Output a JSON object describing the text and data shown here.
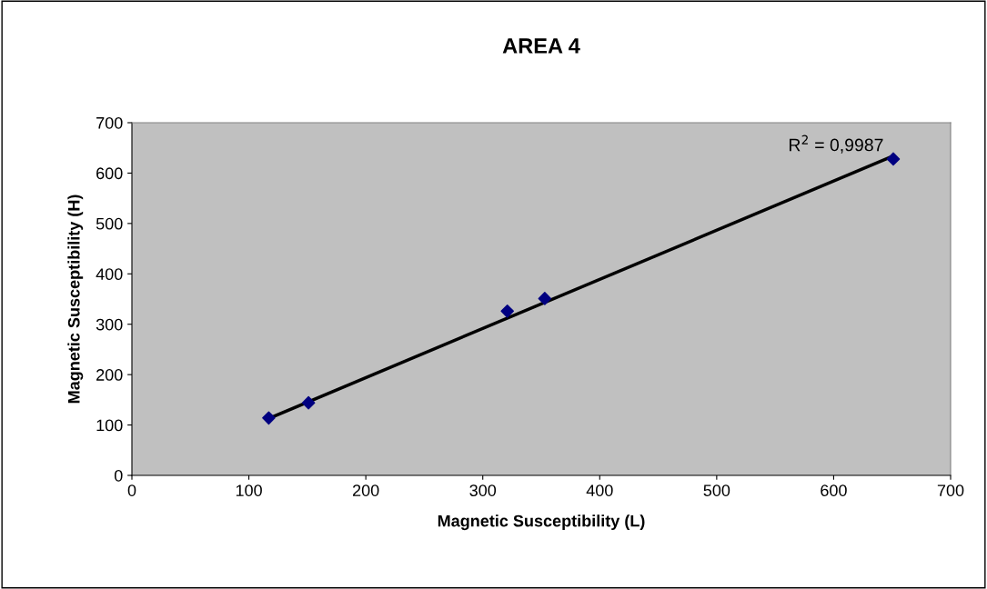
{
  "chart_data": {
    "type": "scatter",
    "title": "AREA 4",
    "xlabel": "Magnetic Susceptibility (L)",
    "ylabel": "Magnetic Susceptibility (H)",
    "series": [
      {
        "color": "#000080",
        "marker": "diamond",
        "x": [
          117,
          151,
          321,
          353,
          651
        ],
        "values": [
          114,
          144,
          326,
          351,
          628
        ]
      },
      {
        "type": "line",
        "color": "#000000",
        "marker": "none",
        "x": [
          117,
          651
        ],
        "values": [
          113,
          634
        ]
      }
    ],
    "annotations": [
      "R$^{2}$ = 0,9987"
    ],
    "xlim": [
      0,
      700
    ],
    "ylim": [
      0,
      700
    ],
    "xticks": [
      0,
      100,
      200,
      300,
      400,
      500,
      600,
      700
    ],
    "yticks": [
      0,
      100,
      200,
      300,
      400,
      500,
      600,
      700
    ],
    "grid": false,
    "legend": false
  }
}
